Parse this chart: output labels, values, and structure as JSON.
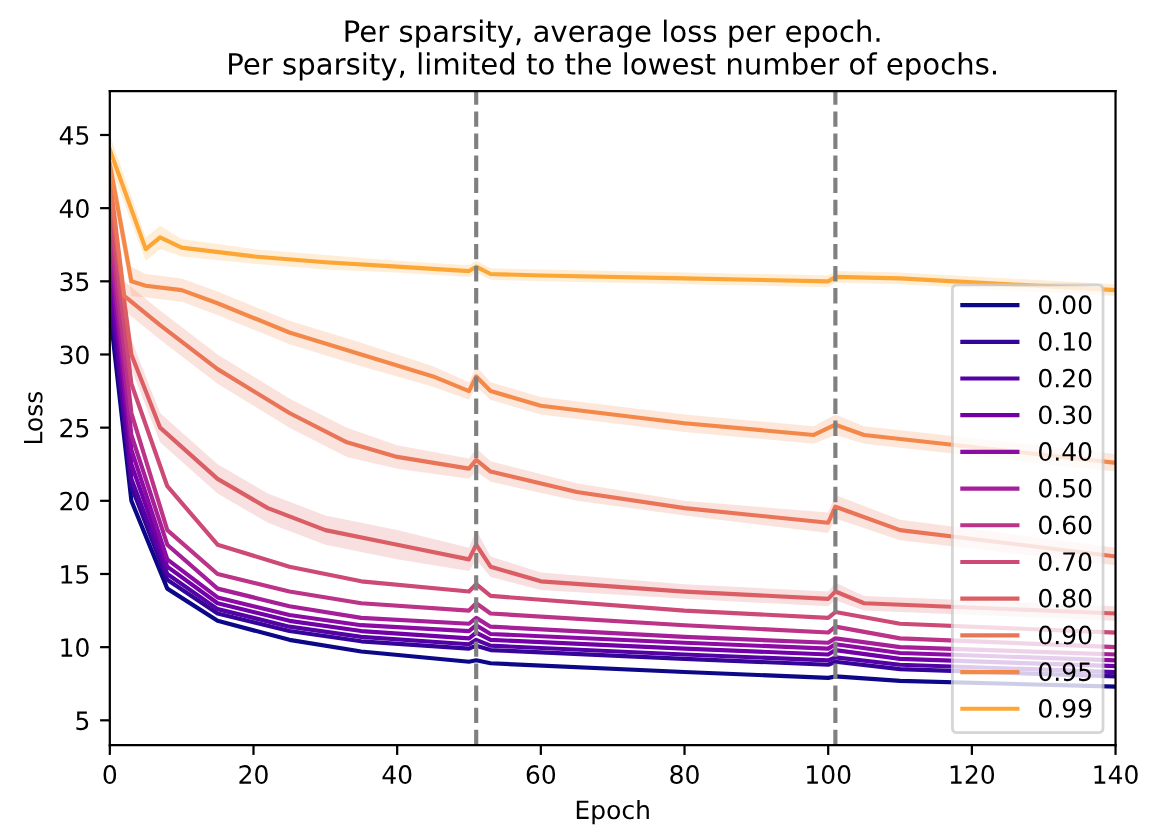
{
  "chart_data": {
    "type": "line",
    "title": "Per sparsity, average loss per epoch.\nPer sparsity, limited to the lowest number of epochs.",
    "xlabel": "Epoch",
    "ylabel": "Loss",
    "xlim": [
      0,
      140
    ],
    "ylim": [
      3.3,
      48
    ],
    "xticks": [
      0,
      20,
      40,
      60,
      80,
      100,
      120,
      140
    ],
    "yticks": [
      5,
      10,
      15,
      20,
      25,
      30,
      35,
      40,
      45
    ],
    "grid": false,
    "legend": "lower right",
    "line_style": "solid",
    "marker": "none",
    "ref_lines": [
      {
        "axis": "x",
        "value": 51,
        "color": "#808080",
        "line_style": "dashed"
      },
      {
        "axis": "x",
        "value": 101,
        "color": "#808080",
        "line_style": "dashed"
      }
    ],
    "series": [
      {
        "name": "0.00",
        "color": "#0d0887",
        "x": [
          0,
          3,
          8,
          15,
          25,
          35,
          50,
          51,
          53,
          80,
          100,
          101,
          110,
          140
        ],
        "values": [
          33,
          20,
          14,
          11.8,
          10.5,
          9.7,
          9.0,
          9.1,
          8.9,
          8.3,
          7.9,
          8.0,
          7.7,
          7.3
        ]
      },
      {
        "name": "0.10",
        "color": "#350498",
        "x": [
          0,
          3,
          8,
          15,
          25,
          35,
          50,
          51,
          53,
          80,
          100,
          101,
          110,
          140
        ],
        "values": [
          34,
          21,
          14.6,
          12.3,
          11.1,
          10.4,
          9.9,
          10.1,
          9.8,
          9.2,
          8.8,
          9,
          8.5,
          8
        ]
      },
      {
        "name": "0.20",
        "color": "#5502a4",
        "x": [
          0,
          3,
          8,
          15,
          25,
          35,
          50,
          51,
          53,
          80,
          100,
          101,
          110,
          140
        ],
        "values": [
          35,
          21.5,
          15,
          12.6,
          11.4,
          10.7,
          10.2,
          10.5,
          10.1,
          9.5,
          9.1,
          9.3,
          8.8,
          8.3
        ]
      },
      {
        "name": "0.30",
        "color": "#7100a8",
        "x": [
          0,
          3,
          8,
          15,
          25,
          35,
          50,
          51,
          53,
          80,
          100,
          101,
          110,
          140
        ],
        "values": [
          36,
          22.5,
          15.5,
          13,
          11.8,
          11.1,
          10.6,
          11,
          10.5,
          9.9,
          9.5,
          9.8,
          9.2,
          8.7
        ]
      },
      {
        "name": "0.40",
        "color": "#8d0ba5",
        "x": [
          0,
          3,
          8,
          15,
          25,
          35,
          50,
          51,
          53,
          80,
          100,
          101,
          110,
          140
        ],
        "values": [
          37,
          23.5,
          16,
          13.4,
          12.2,
          11.5,
          11.1,
          11.5,
          10.9,
          10.3,
          9.9,
          10.2,
          9.6,
          9.1
        ]
      },
      {
        "name": "0.50",
        "color": "#a51f99",
        "x": [
          0,
          3,
          8,
          15,
          25,
          35,
          50,
          51,
          53,
          80,
          100,
          101,
          110,
          140
        ],
        "values": [
          38,
          24.5,
          17,
          14,
          12.8,
          12,
          11.6,
          12,
          11.4,
          10.7,
          10.3,
          10.6,
          10,
          9.5
        ]
      },
      {
        "name": "0.60",
        "color": "#bb3488",
        "x": [
          0,
          3,
          8,
          15,
          25,
          35,
          50,
          51,
          53,
          80,
          100,
          101,
          110,
          140
        ],
        "values": [
          39,
          26,
          18,
          15,
          13.8,
          13,
          12.5,
          13,
          12.3,
          11.5,
          11,
          11.4,
          10.6,
          10
        ]
      },
      {
        "name": "0.70",
        "color": "#cd4a76",
        "x": [
          0,
          3,
          8,
          15,
          25,
          35,
          50,
          51,
          53,
          80,
          100,
          101,
          110,
          140
        ],
        "values": [
          40,
          28,
          21,
          17,
          15.5,
          14.5,
          13.8,
          14.3,
          13.5,
          12.5,
          12,
          12.4,
          11.6,
          11
        ]
      },
      {
        "name": "0.80",
        "color": "#dc5e65",
        "x": [
          0,
          3,
          7,
          15,
          22,
          30,
          40,
          50,
          51,
          53,
          60,
          80,
          100,
          101,
          105,
          140
        ],
        "values": [
          41,
          30,
          25,
          21.5,
          19.5,
          18,
          17,
          16,
          17,
          15.5,
          14.5,
          13.8,
          13.3,
          13.8,
          13,
          12.3
        ],
        "lower": [
          40,
          29,
          24,
          20.5,
          18.5,
          17,
          16,
          15.2,
          16,
          14.8,
          13.9,
          13.3,
          12.8,
          13.2,
          12.5,
          11.8
        ],
        "upper": [
          42,
          31,
          26,
          22.5,
          20.5,
          19,
          18,
          16.8,
          18,
          16.2,
          15.1,
          14.3,
          13.8,
          14.4,
          13.5,
          12.8
        ]
      },
      {
        "name": "0.90",
        "color": "#ea7457",
        "x": [
          0,
          2,
          7,
          15,
          25,
          33,
          40,
          50,
          51,
          53,
          65,
          80,
          100,
          101,
          110,
          140
        ],
        "values": [
          42,
          34,
          32,
          29,
          26,
          24,
          23,
          22.2,
          22.8,
          22,
          20.6,
          19.5,
          18.5,
          19.6,
          18,
          16.2
        ],
        "lower": [
          41,
          33,
          31,
          28,
          25,
          23,
          22.2,
          21.5,
          22,
          21.3,
          20,
          19,
          17.8,
          18.8,
          17.3,
          15.6
        ],
        "upper": [
          43,
          35,
          33,
          30,
          27,
          25,
          23.8,
          22.9,
          23.6,
          22.7,
          21.2,
          20,
          19.2,
          20.4,
          18.7,
          16.8
        ]
      },
      {
        "name": "0.95",
        "color": "#f48849",
        "x": [
          0,
          3,
          5,
          10,
          15,
          25,
          35,
          45,
          50,
          51,
          53,
          60,
          80,
          98,
          101,
          105,
          140
        ],
        "values": [
          43,
          35,
          34.7,
          34.4,
          33.5,
          31.5,
          30,
          28.5,
          27.5,
          28.5,
          27.5,
          26.5,
          25.3,
          24.5,
          25.2,
          24.5,
          22.6
        ],
        "lower": [
          42,
          34,
          33.9,
          33.6,
          32.7,
          30.7,
          29.2,
          27.8,
          26.9,
          27.8,
          26.9,
          25.9,
          24.7,
          23.9,
          24.5,
          23.9,
          22
        ],
        "upper": [
          44,
          36,
          35.5,
          35.2,
          34.3,
          32.3,
          30.8,
          29.2,
          28.1,
          29.2,
          28.1,
          27.1,
          25.9,
          25.1,
          25.9,
          25.1,
          23.2
        ]
      },
      {
        "name": "0.99",
        "color": "#fca636",
        "x": [
          0,
          5,
          7,
          10,
          20,
          30,
          40,
          50,
          51,
          53,
          60,
          80,
          100,
          101,
          110,
          140
        ],
        "values": [
          44,
          37.2,
          38,
          37.3,
          36.7,
          36.3,
          36,
          35.7,
          36,
          35.5,
          35.4,
          35.2,
          35,
          35.3,
          35.2,
          34.4
        ],
        "lower": [
          43,
          36.4,
          37.2,
          36.7,
          36.2,
          35.8,
          35.6,
          35.3,
          35.6,
          35.1,
          35,
          34.8,
          34.6,
          34.9,
          34.8,
          34
        ],
        "upper": [
          45,
          38,
          38.8,
          37.9,
          37.2,
          36.8,
          36.4,
          36.1,
          36.4,
          35.9,
          35.8,
          35.6,
          35.4,
          35.7,
          35.6,
          34.8
        ]
      }
    ]
  }
}
